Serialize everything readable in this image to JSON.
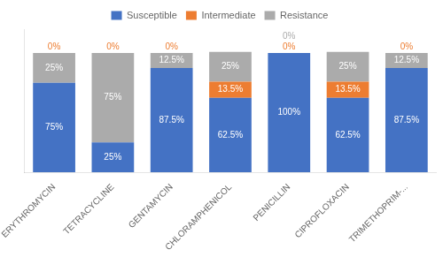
{
  "chart_data": {
    "type": "bar",
    "stacked": true,
    "categories": [
      "ERYTHROMYCIN",
      "TETRACYCLINE",
      "GENTAMYCIN",
      "CHLORAMPHENICOL",
      "PENICILLIN",
      "CIPROFLOXACIN",
      "TRIMETHOPRIM-..."
    ],
    "series": [
      {
        "name": "Susceptible",
        "color": "#4472C4",
        "values": [
          75.0,
          25.0,
          87.5,
          62.5,
          100.0,
          62.5,
          87.5
        ],
        "value_labels": [
          "75%",
          "25%",
          "87.5%",
          "62.5%",
          "100%",
          "62.5%",
          "87.5%"
        ]
      },
      {
        "name": "Intermediate",
        "color": "#ED7D31",
        "values": [
          0.0,
          0.0,
          0.0,
          13.5,
          0.0,
          13.5,
          0.0
        ],
        "value_labels": [
          "0%",
          "0%",
          "0%",
          "13.5%",
          "0%",
          "13.5%",
          "0%"
        ]
      },
      {
        "name": "Resistance",
        "color": "#ABABAB",
        "values": [
          25.0,
          75.0,
          12.5,
          25.0,
          0.0,
          25.0,
          12.5
        ],
        "value_labels": [
          "25%",
          "75%",
          "12.5%",
          "25%",
          "0%",
          "25%",
          "12.5%"
        ]
      }
    ],
    "ylim": [
      0,
      120
    ],
    "grid": false,
    "legend": "top",
    "data_labels": true,
    "tick_labels": "x"
  }
}
